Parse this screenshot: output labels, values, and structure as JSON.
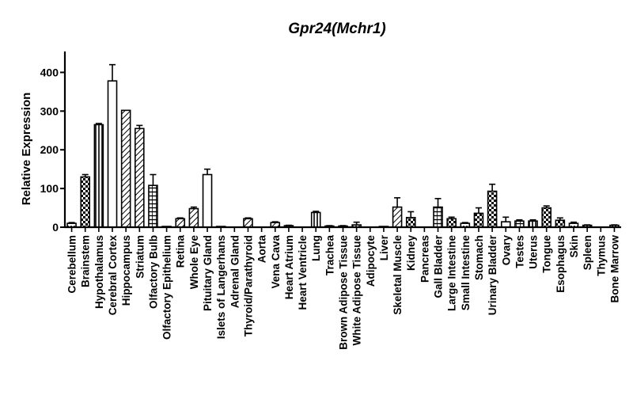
{
  "chart_data": {
    "type": "bar",
    "title": "Gpr24(Mchr1)",
    "xlabel": "",
    "ylabel": "Relative Expression",
    "ylim": [
      0,
      450
    ],
    "yticks": [
      0,
      100,
      200,
      300,
      400
    ],
    "grid": false,
    "categories": [
      "Cerebellum",
      "Brainstem",
      "Hypothalamus",
      "Cerebral Cortex",
      "Hippocampus",
      "Striatum",
      "Olfactory Bulb",
      "Olfactory Epithelium",
      "Retina",
      "Whole Eye",
      "Pituitary Gland",
      "Islets of Langerhans",
      "Adrenal Gland",
      "Thyroid/Parathyroid",
      "Aorta",
      "Vena Cava",
      "Heart Atrium",
      "Heart Ventricle",
      "Lung",
      "Trachea",
      "Brown Adipose Tissue",
      "White Adipose Tissue",
      "Adipocyte",
      "Liver",
      "Skeletal Muscle",
      "Kidney",
      "Pancreas",
      "Gall Bladder",
      "Large Intestine",
      "Small Intestine",
      "Stomach",
      "Urinary Bladder",
      "Ovary",
      "Testes",
      "Uterus",
      "Tongue",
      "Esophagus",
      "Skin",
      "Spleen",
      "Thymus",
      "Bone Marrow"
    ],
    "values": [
      10,
      130,
      265,
      378,
      302,
      255,
      108,
      2,
      22,
      48,
      136,
      2,
      0,
      22,
      0,
      12,
      4,
      0,
      38,
      3,
      3,
      6,
      0,
      2,
      52,
      25,
      0,
      52,
      22,
      10,
      36,
      93,
      14,
      16,
      16,
      50,
      18,
      10,
      5,
      0,
      5
    ],
    "errors": [
      2,
      6,
      3,
      42,
      0,
      8,
      28,
      0,
      2,
      4,
      14,
      0,
      0,
      2,
      0,
      2,
      1,
      0,
      3,
      1,
      1,
      7,
      0,
      0,
      24,
      15,
      0,
      22,
      4,
      2,
      14,
      18,
      12,
      3,
      3,
      5,
      6,
      3,
      1,
      0,
      1
    ],
    "patterns": [
      "dots",
      "checker",
      "vlines",
      "open",
      "diag",
      "diag",
      "grid",
      "open",
      "diag",
      "diag",
      "open",
      "open",
      "open",
      "diag",
      "open",
      "diag",
      "dots",
      "open",
      "vlines",
      "dots",
      "dots",
      "dots",
      "open",
      "open",
      "diag",
      "checker",
      "open",
      "grid",
      "checker",
      "dots",
      "checker",
      "checker",
      "open",
      "grid",
      "vlines",
      "checker",
      "checker",
      "dots",
      "dots",
      "open",
      "dots"
    ]
  }
}
